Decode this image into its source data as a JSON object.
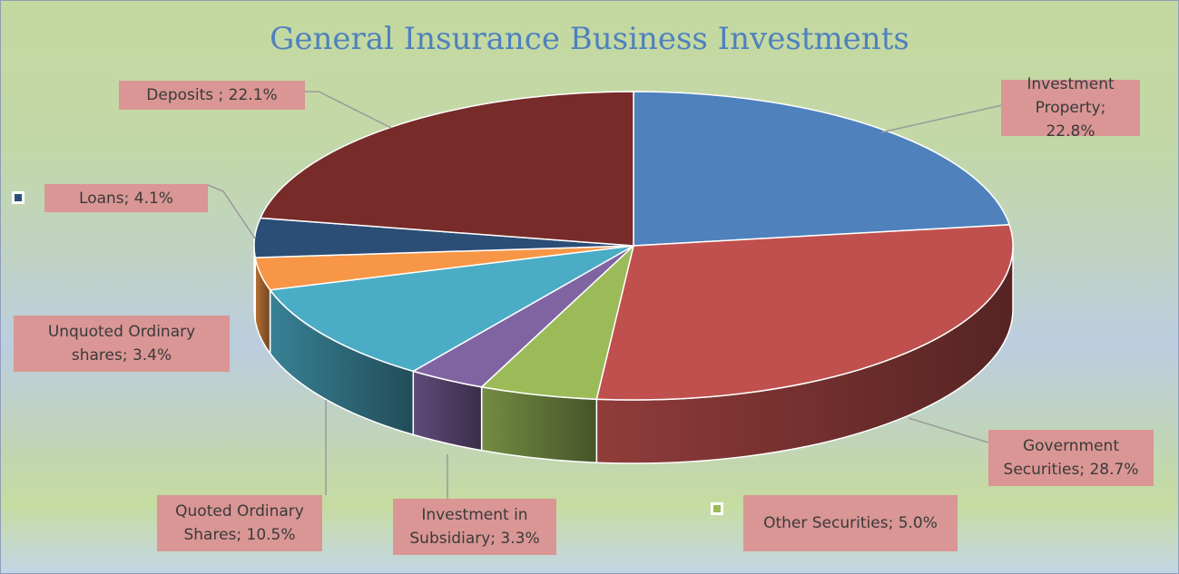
{
  "chart_data": {
    "type": "pie",
    "title": "General Insurance Business Investments",
    "values": [
      22.8,
      28.7,
      5.0,
      3.3,
      10.5,
      3.4,
      4.1,
      22.1
    ],
    "value_labels": [
      "Investment Property; 22.8%",
      "Government Securities; 28.7%",
      "Other Securities; 5.0%",
      "Investment in Subsidiary; 3.3%",
      "Quoted Ordinary Shares; 10.5%",
      "Unquoted Ordinary shares; 3.4%",
      "Loans; 4.1%",
      "Deposits ; 22.1%"
    ],
    "colors": [
      "#4f81bd",
      "#c0504d",
      "#9bbb59",
      "#8064a2",
      "#4bacc6",
      "#f79646",
      "#2c4d75",
      "#772c2a"
    ]
  }
}
